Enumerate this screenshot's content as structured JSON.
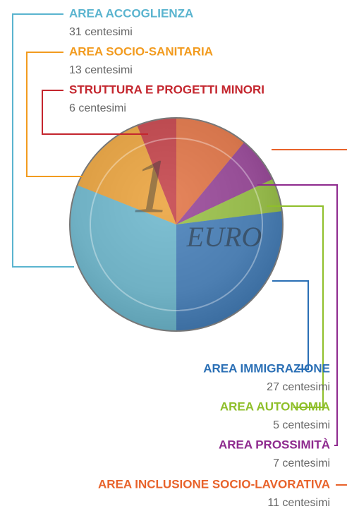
{
  "chart_data": {
    "type": "pie",
    "categories": [
      "AREA INCLUSIONE SOCIO-LAVORATIVA",
      "AREA PROSSIMITÀ",
      "AREA AUTONOMIA",
      "AREA IMMIGRAZIONE",
      "AREA ACCOGLIENZA",
      "AREA SOCIO-SANITARIA",
      "STRUTTURA E PROGETTI MINORI"
    ],
    "values": [
      11,
      7,
      5,
      27,
      31,
      13,
      6
    ],
    "value_labels": [
      "11 centesimi",
      "7 centesimi",
      "5 centesimi",
      "27 centesimi",
      "31 centesimi",
      "13 centesimi",
      "6 centesimi"
    ],
    "colors": [
      "#e8622a",
      "#8e2a8e",
      "#8fbf2a",
      "#2a6fb5",
      "#5ab4cf",
      "#f29b1f",
      "#c4262e"
    ]
  },
  "coin": {
    "denomination": "1",
    "text": "EURO"
  }
}
